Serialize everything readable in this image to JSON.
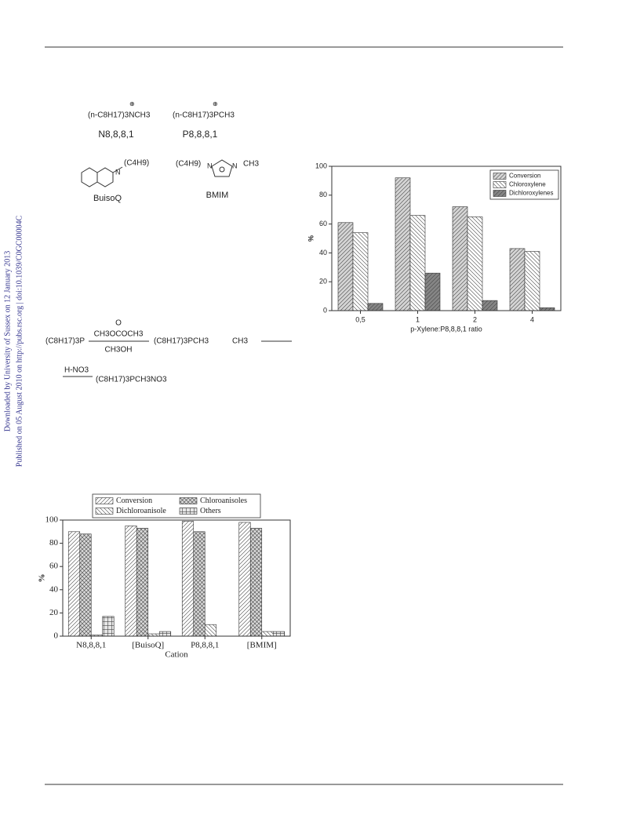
{
  "sidebar": [
    "Downloaded by University of Sussex on 12 January 2013",
    "Published on 05 August 2010 on http://pubs.rsc.org | doi:10.1039/C0GC00004C"
  ],
  "structures": [
    {
      "formula": "(n-C8H17)3NCH3",
      "label": "N8,8,8,1"
    },
    {
      "formula": "(n-C8H17)3PCH3",
      "label": "P8,8,8,1"
    },
    {
      "formula": "(C4H9)",
      "label": "BuisoQ"
    },
    {
      "formula": "(C4H9)",
      "substituent": "CH3",
      "label": "BMIM"
    }
  ],
  "scheme": {
    "reactant": "(C8H17)3P",
    "reagent": "CH3OCOCH3",
    "reagent_o": "O",
    "solvent": "CH3OH",
    "product": "(C8H17)3PCH3",
    "anion": "CH3",
    "acid": "H-NO3",
    "final": "(C8H17)3PCH3NO3"
  },
  "chart_data": [
    {
      "type": "bar",
      "categories": [
        "0,5",
        "1",
        "2",
        "4"
      ],
      "ylabel": "%",
      "xlabel": "p-Xylene:P8,8,8,1 ratio",
      "ylim": [
        0,
        100
      ],
      "yticks": [
        0,
        20,
        40,
        60,
        80,
        100
      ],
      "series": [
        {
          "name": "Conversion",
          "color": "#d4d4d4",
          "hatch": "forward",
          "values": [
            61,
            92,
            72,
            43
          ]
        },
        {
          "name": "Chloroxylene",
          "color": "#ffffff",
          "hatch": "backward",
          "values": [
            54,
            66,
            65,
            41
          ]
        },
        {
          "name": "Dichloroxylenes",
          "color": "#858585",
          "hatch": "forward",
          "values": [
            5,
            26,
            7,
            2
          ]
        }
      ]
    },
    {
      "type": "bar",
      "categories": [
        "N8,8,8,1",
        "[BuisoQ]",
        "P8,8,8,1",
        "[BMIM]"
      ],
      "ylabel": "%",
      "xlabel": "Cation",
      "ylim": [
        0,
        100
      ],
      "yticks": [
        0,
        20,
        40,
        60,
        80,
        100
      ],
      "series": [
        {
          "name": "Conversion",
          "color": "#ffffff",
          "hatch": "forward",
          "values": [
            90,
            95,
            99,
            98
          ]
        },
        {
          "name": "Chloroanisoles",
          "color": "#d8d8d8",
          "hatch": "cross",
          "values": [
            88,
            93,
            90,
            93
          ]
        },
        {
          "name": "Dichloroanisole",
          "color": "#ffffff",
          "hatch": "backward",
          "values": [
            1,
            2,
            10,
            4
          ]
        },
        {
          "name": "Others",
          "color": "#e6e6e6",
          "hatch": "grid",
          "values": [
            17,
            4,
            0,
            4
          ]
        }
      ]
    }
  ]
}
